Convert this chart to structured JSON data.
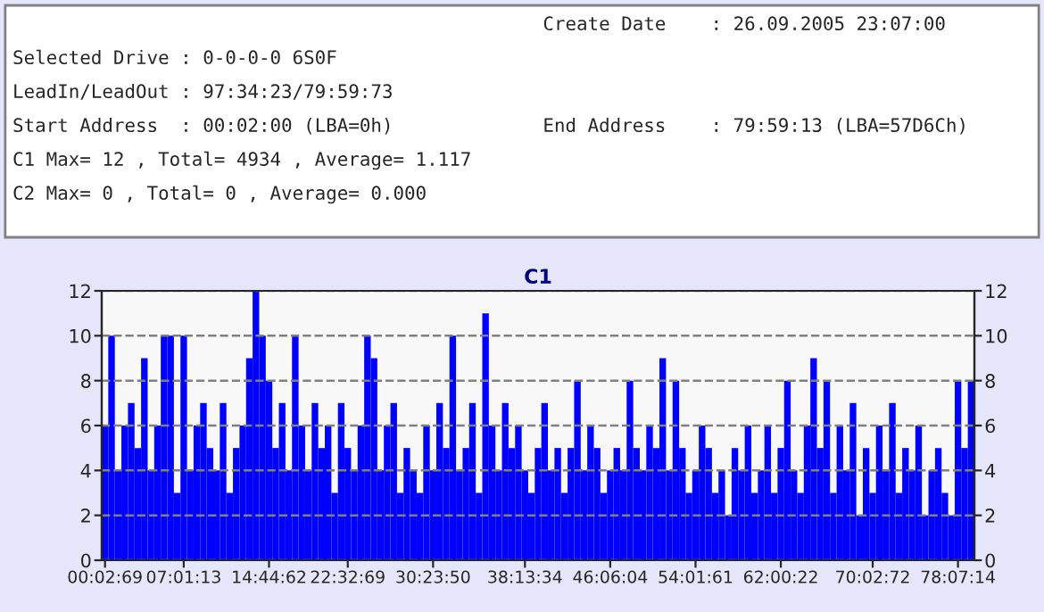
{
  "chart_data": {
    "type": "bar",
    "title": "C1",
    "annotations": [
      "Create Date    : 26.09.2005 23:07:00",
      "Selected Drive : 0-0-0-0 6S0F",
      "LeadIn/LeadOut : 97:34:23/79:59:73",
      "Start Address  : 00:02:00 (LBA=0h)",
      "End Address    : 79:59:13 (LBA=57D6Ch)",
      "C1 Max= 12 , Total= 4934 , Average= 1.117",
      "C2 Max= 0 , Total= 0 , Average= 0.000"
    ],
    "categories": [
      "00:02:69",
      null,
      null,
      null,
      null,
      null,
      null,
      null,
      null,
      null,
      null,
      null,
      "07:01:13",
      null,
      null,
      null,
      null,
      null,
      null,
      null,
      null,
      null,
      null,
      null,
      null,
      "14:44:62",
      null,
      null,
      null,
      null,
      null,
      null,
      null,
      null,
      null,
      null,
      null,
      "22:32:69",
      null,
      null,
      null,
      null,
      null,
      null,
      null,
      null,
      null,
      null,
      null,
      null,
      "30:23:50",
      null,
      null,
      null,
      null,
      null,
      null,
      null,
      null,
      null,
      null,
      null,
      null,
      null,
      "38:13:34",
      null,
      null,
      null,
      null,
      null,
      null,
      null,
      null,
      null,
      null,
      null,
      null,
      "46:06:04",
      null,
      null,
      null,
      null,
      null,
      null,
      null,
      null,
      null,
      null,
      null,
      null,
      "54:01:61",
      null,
      null,
      null,
      null,
      null,
      null,
      null,
      null,
      null,
      null,
      null,
      null,
      "62:00:22",
      null,
      null,
      null,
      null,
      null,
      null,
      null,
      null,
      null,
      null,
      null,
      null,
      null,
      "70:02:72",
      null,
      null,
      null,
      null,
      null,
      null,
      null,
      null,
      null,
      null,
      null,
      null,
      "78:07:14",
      null,
      null
    ],
    "values": [
      6,
      10,
      4,
      6,
      7,
      5,
      9,
      4,
      6,
      10,
      10,
      3,
      10,
      4,
      6,
      7,
      5,
      4,
      7,
      3,
      5,
      6,
      9,
      12,
      10,
      8,
      5,
      7,
      4,
      10,
      6,
      4,
      7,
      5,
      6,
      3,
      7,
      5,
      4,
      6,
      10,
      9,
      4,
      6,
      7,
      3,
      5,
      4,
      3,
      6,
      4,
      7,
      5,
      10,
      4,
      5,
      7,
      3,
      11,
      6,
      4,
      7,
      5,
      6,
      4,
      3,
      5,
      7,
      4,
      5,
      3,
      5,
      8,
      4,
      6,
      5,
      3,
      4,
      5,
      4,
      8,
      5,
      4,
      6,
      5,
      9,
      4,
      8,
      5,
      3,
      4,
      6,
      5,
      3,
      4,
      2,
      5,
      4,
      6,
      3,
      4,
      6,
      3,
      5,
      8,
      4,
      3,
      6,
      9,
      5,
      8,
      3,
      6,
      4,
      7,
      2,
      5,
      3,
      6,
      4,
      7,
      3,
      5,
      4,
      6,
      2,
      4,
      5,
      3,
      2,
      8,
      5,
      8
    ],
    "color": "#0000ff",
    "ylim": [
      0,
      12
    ],
    "yticks": [
      0,
      2,
      4,
      6,
      8,
      10,
      12
    ],
    "y2lim": [
      0,
      12
    ],
    "y2ticks": [
      0,
      2,
      4,
      6,
      8,
      10,
      12
    ],
    "grid": "y",
    "line_style": "dashed"
  }
}
